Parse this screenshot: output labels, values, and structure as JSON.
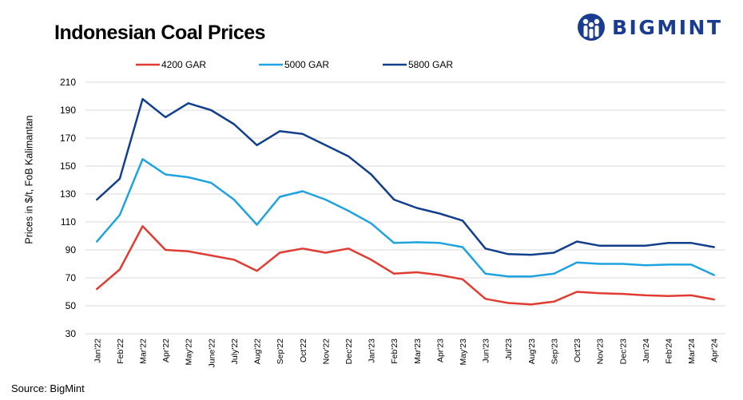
{
  "header": {
    "title": "Indonesian Coal Prices",
    "brand": "BIGMINT"
  },
  "footer": {
    "source": "Source: BigMint"
  },
  "colors": {
    "s4200": "#e03c31",
    "s5000": "#1fa3e0",
    "s5800": "#123f8c",
    "grid": "#d9d9d9",
    "brand": "#1a3d8f"
  },
  "chart_data": {
    "type": "line",
    "title": "Indonesian Coal Prices",
    "xlabel": "",
    "ylabel": "Prices in $/t, FoB Kalimantan",
    "ylim": [
      30,
      210
    ],
    "yticks": [
      30,
      50,
      70,
      90,
      110,
      130,
      150,
      170,
      190,
      210
    ],
    "grid": true,
    "legend_position": "top",
    "categories": [
      "Jan'22",
      "Feb'22",
      "Mar'22",
      "Apr'22",
      "May'22",
      "June'22",
      "July'22",
      "Aug'22",
      "Sep'22",
      "Oct'22",
      "Nov'22",
      "Dec'22",
      "Jan'23",
      "Feb'23",
      "Mar'23",
      "Apr'23",
      "May'23",
      "Jun'23",
      "Jul'23",
      "Aug'23",
      "Sep'23",
      "Oct'23",
      "Nov'23",
      "Dec'23",
      "Jan'24",
      "Feb'24",
      "Mar'24",
      "Apr'24"
    ],
    "series": [
      {
        "name": "4200 GAR",
        "color_key": "s4200",
        "values": [
          62,
          76,
          107,
          90,
          89,
          86,
          83,
          75,
          88,
          91,
          88,
          91,
          83,
          73,
          74,
          72,
          69,
          55,
          52,
          51,
          53,
          60,
          59,
          58.5,
          57.5,
          57,
          57.5,
          54.5
        ]
      },
      {
        "name": "5000 GAR",
        "color_key": "s5000",
        "values": [
          96,
          115,
          155,
          144,
          142,
          138,
          126,
          108,
          128,
          132,
          126,
          118,
          109,
          95,
          95.5,
          95,
          92,
          73,
          71,
          71,
          73,
          81,
          80,
          80,
          79,
          79.5,
          79.5,
          72
        ]
      },
      {
        "name": "5800 GAR",
        "color_key": "s5800",
        "values": [
          126,
          141,
          198,
          185,
          195,
          190,
          180,
          165,
          175,
          173,
          165,
          157,
          144,
          126,
          120,
          116,
          111,
          91,
          87,
          86.5,
          88,
          96,
          93,
          93,
          93,
          95,
          95,
          92
        ]
      }
    ]
  }
}
